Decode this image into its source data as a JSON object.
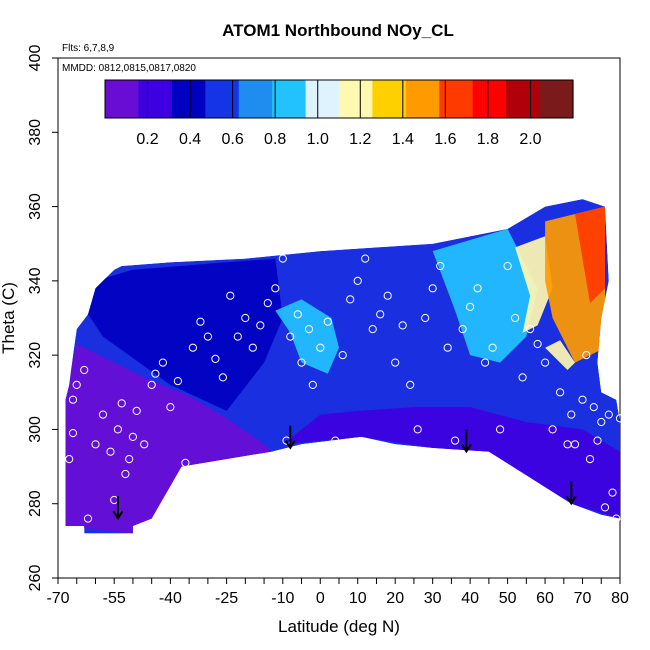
{
  "chart_data": {
    "type": "heatmap",
    "title": "ATOM1 Northbound NOy_CL",
    "annotations": {
      "flights": "Flts: 6,7,8,9",
      "dates": "MMDD: 0812,0815,0817,0820"
    },
    "xlabel": "Latitude (deg N)",
    "ylabel": "Theta (C)",
    "xlim": [
      -70,
      80
    ],
    "ylim": [
      260,
      400
    ],
    "x_ticks": [
      -70,
      -55,
      -40,
      -25,
      -10,
      0,
      10,
      20,
      30,
      40,
      50,
      60,
      70,
      80
    ],
    "x_tick_labels": [
      "-70",
      "-55",
      "-40",
      "-25",
      "-10",
      "0",
      "10",
      "20",
      "30",
      "40",
      "50",
      "60",
      "70",
      "80"
    ],
    "y_ticks": [
      260,
      280,
      300,
      320,
      340,
      360,
      380,
      400
    ],
    "y_tick_labels": [
      "260",
      "280",
      "300",
      "320",
      "340",
      "360",
      "380",
      "400"
    ],
    "colorbar": {
      "range": [
        0.0,
        2.2
      ],
      "tick_values": [
        0.2,
        0.4,
        0.6,
        0.8,
        1.0,
        1.2,
        1.4,
        1.6,
        1.8,
        2.0
      ],
      "tick_labels": [
        "0.2",
        "0.4",
        "0.6",
        "0.8",
        "1.0",
        "1.2",
        "1.4",
        "1.6",
        "1.8",
        "2.0"
      ],
      "colors": [
        "#6a0dd4",
        "#3d00e0",
        "#0000c0",
        "#1434e6",
        "#1f8cf0",
        "#22c2ff",
        "#dff3ff",
        "#fff8b0",
        "#ffd000",
        "#ff9a00",
        "#ff3a00",
        "#ff0000",
        "#b0000a",
        "#7a1a1a"
      ]
    },
    "field": {
      "boundary": [
        [
          -68,
          274
        ],
        [
          -63,
          274
        ],
        [
          -63,
          272
        ],
        [
          -50,
          272
        ],
        [
          -50,
          274
        ],
        [
          -45,
          276
        ],
        [
          -37,
          290
        ],
        [
          -25,
          292
        ],
        [
          -13,
          294
        ],
        [
          -5,
          296
        ],
        [
          11,
          298
        ],
        [
          20,
          296
        ],
        [
          30,
          295
        ],
        [
          45,
          294
        ],
        [
          67,
          280
        ],
        [
          75,
          277
        ],
        [
          80,
          276
        ],
        [
          80,
          302
        ],
        [
          79,
          308
        ],
        [
          75,
          310
        ],
        [
          74,
          318
        ],
        [
          75,
          330
        ],
        [
          77,
          340
        ],
        [
          76,
          360
        ],
        [
          70,
          362
        ],
        [
          60,
          360
        ],
        [
          50,
          354
        ],
        [
          30,
          350
        ],
        [
          15,
          349
        ],
        [
          0,
          348
        ],
        [
          -20,
          346
        ],
        [
          -40,
          345
        ],
        [
          -53,
          344
        ],
        [
          -55,
          343
        ],
        [
          -60,
          338
        ],
        [
          -62,
          331
        ],
        [
          -65,
          327
        ],
        [
          -66,
          320
        ],
        [
          -67,
          312
        ],
        [
          -68,
          308
        ]
      ],
      "regions": [
        {
          "level": 0.15,
          "points": [
            [
              -68,
              274
            ],
            [
              -50,
              272
            ],
            [
              -45,
              276
            ],
            [
              -37,
              290
            ],
            [
              -25,
              292
            ],
            [
              -13,
              294
            ],
            [
              -15,
              296
            ],
            [
              -25,
              303
            ],
            [
              -35,
              309
            ],
            [
              -45,
              313
            ],
            [
              -55,
              318
            ],
            [
              -65,
              323
            ],
            [
              -68,
              310
            ]
          ]
        },
        {
          "level": 0.2,
          "points": [
            [
              -10,
              296
            ],
            [
              11,
              298
            ],
            [
              30,
              295
            ],
            [
              45,
              294
            ],
            [
              67,
              280
            ],
            [
              80,
              276
            ],
            [
              80,
              294
            ],
            [
              70,
              300
            ],
            [
              55,
              302
            ],
            [
              40,
              306
            ],
            [
              25,
              306
            ],
            [
              10,
              305
            ],
            [
              0,
              304
            ]
          ]
        },
        {
          "level": 0.45,
          "points": [
            [
              -60,
              340
            ],
            [
              -50,
              343
            ],
            [
              -25,
              345
            ],
            [
              -12,
              346
            ],
            [
              -10,
              330
            ],
            [
              -15,
              318
            ],
            [
              -25,
              305
            ],
            [
              -40,
              312
            ],
            [
              -58,
              325
            ],
            [
              -62,
              331
            ]
          ]
        },
        {
          "level": 0.85,
          "points": [
            [
              -12,
              332
            ],
            [
              -8,
              326
            ],
            [
              -5,
              318
            ],
            [
              2,
              315
            ],
            [
              5,
              322
            ],
            [
              3,
              330
            ],
            [
              -5,
              335
            ]
          ]
        },
        {
          "level": 0.8,
          "points": [
            [
              30,
              348
            ],
            [
              50,
              354
            ],
            [
              58,
              338
            ],
            [
              55,
              325
            ],
            [
              48,
              318
            ],
            [
              40,
              320
            ],
            [
              36,
              332
            ]
          ]
        },
        {
          "level": 1.15,
          "points": [
            [
              52,
              349
            ],
            [
              60,
              352
            ],
            [
              62,
              338
            ],
            [
              58,
              328
            ],
            [
              54,
              326
            ],
            [
              56,
              336
            ]
          ]
        },
        {
          "level": 1.45,
          "points": [
            [
              60,
              356
            ],
            [
              76,
              360
            ],
            [
              76,
              322
            ],
            [
              68,
              318
            ],
            [
              62,
              330
            ],
            [
              60,
              340
            ]
          ]
        },
        {
          "level": 1.65,
          "points": [
            [
              68,
              358
            ],
            [
              76,
              360
            ],
            [
              76,
              338
            ],
            [
              72,
              334
            ]
          ]
        },
        {
          "level": 1.25,
          "points": [
            [
              60,
              322
            ],
            [
              66,
              316
            ],
            [
              68,
              318
            ],
            [
              64,
              324
            ]
          ]
        }
      ],
      "observations": [
        [
          -67,
          292
        ],
        [
          -66,
          299
        ],
        [
          -66,
          308
        ],
        [
          -65,
          312
        ],
        [
          -63,
          316
        ],
        [
          -62,
          276
        ],
        [
          -60,
          296
        ],
        [
          -58,
          304
        ],
        [
          -56,
          294
        ],
        [
          -55,
          281
        ],
        [
          -54,
          300
        ],
        [
          -53,
          307
        ],
        [
          -52,
          288
        ],
        [
          -51,
          292
        ],
        [
          -50,
          298
        ],
        [
          -49,
          305
        ],
        [
          -47,
          296
        ],
        [
          -45,
          312
        ],
        [
          -44,
          315
        ],
        [
          -42,
          318
        ],
        [
          -40,
          306
        ],
        [
          -38,
          313
        ],
        [
          -36,
          291
        ],
        [
          -34,
          322
        ],
        [
          -32,
          329
        ],
        [
          -30,
          325
        ],
        [
          -28,
          319
        ],
        [
          -26,
          314
        ],
        [
          -24,
          336
        ],
        [
          -22,
          325
        ],
        [
          -20,
          330
        ],
        [
          -18,
          322
        ],
        [
          -16,
          328
        ],
        [
          -14,
          334
        ],
        [
          -12,
          338
        ],
        [
          -10,
          346
        ],
        [
          -9,
          297
        ],
        [
          -8,
          325
        ],
        [
          -6,
          331
        ],
        [
          -5,
          318
        ],
        [
          -3,
          327
        ],
        [
          -2,
          312
        ],
        [
          0,
          322
        ],
        [
          2,
          329
        ],
        [
          4,
          297
        ],
        [
          6,
          320
        ],
        [
          8,
          335
        ],
        [
          10,
          340
        ],
        [
          12,
          346
        ],
        [
          14,
          327
        ],
        [
          16,
          331
        ],
        [
          18,
          336
        ],
        [
          20,
          318
        ],
        [
          22,
          328
        ],
        [
          24,
          312
        ],
        [
          26,
          300
        ],
        [
          28,
          330
        ],
        [
          30,
          338
        ],
        [
          32,
          344
        ],
        [
          34,
          322
        ],
        [
          36,
          297
        ],
        [
          38,
          327
        ],
        [
          40,
          333
        ],
        [
          42,
          338
        ],
        [
          44,
          318
        ],
        [
          46,
          322
        ],
        [
          48,
          300
        ],
        [
          50,
          344
        ],
        [
          52,
          330
        ],
        [
          54,
          314
        ],
        [
          56,
          327
        ],
        [
          58,
          323
        ],
        [
          60,
          318
        ],
        [
          62,
          300
        ],
        [
          64,
          310
        ],
        [
          66,
          296
        ],
        [
          67,
          304
        ],
        [
          68,
          296
        ],
        [
          70,
          308
        ],
        [
          71,
          320
        ],
        [
          72,
          292
        ],
        [
          73,
          306
        ],
        [
          74,
          297
        ],
        [
          75,
          302
        ],
        [
          76,
          279
        ],
        [
          77,
          304
        ],
        [
          78,
          283
        ],
        [
          79,
          276
        ],
        [
          80,
          303
        ]
      ],
      "arrows": [
        [
          -54,
          282
        ],
        [
          -8,
          301
        ],
        [
          39,
          300
        ],
        [
          67,
          286
        ]
      ]
    }
  }
}
